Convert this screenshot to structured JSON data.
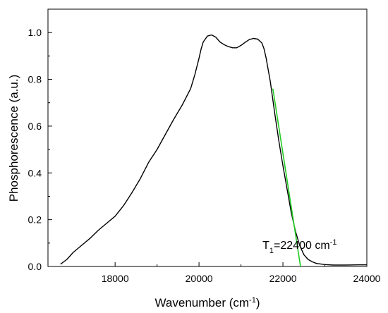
{
  "chart_data": {
    "type": "line",
    "title": "",
    "xlabel": "Wavenumber (cm",
    "xlabel_sup": "-1",
    "xlabel_end": ")",
    "ylabel": "Phosphorescence (a.u.)",
    "xlim": [
      16400,
      24000
    ],
    "ylim": [
      0.0,
      1.1
    ],
    "xticks": [
      18000,
      20000,
      22000,
      24000
    ],
    "xtick_labels": [
      "18000",
      "20000",
      "22000",
      "24000"
    ],
    "yticks": [
      0.0,
      0.2,
      0.4,
      0.6,
      0.8,
      1.0
    ],
    "ytick_labels": [
      "0.0",
      "0.2",
      "0.4",
      "0.6",
      "0.8",
      "1.0"
    ],
    "grid": false,
    "series": [
      {
        "color": "#000000",
        "x": [
          16700,
          16850,
          17000,
          17200,
          17400,
          17600,
          17800,
          18000,
          18200,
          18400,
          18600,
          18800,
          19000,
          19200,
          19400,
          19600,
          19800,
          19900,
          20000,
          20050,
          20100,
          20200,
          20300,
          20400,
          20500,
          20600,
          20700,
          20800,
          20900,
          21000,
          21100,
          21200,
          21300,
          21400,
          21500,
          21550,
          21600,
          21700,
          21800,
          21900,
          22000,
          22100,
          22200,
          22300,
          22400,
          22500,
          22600,
          22700,
          22800,
          23000,
          23200,
          23500,
          23800,
          24000
        ],
        "y": [
          0.01,
          0.03,
          0.06,
          0.09,
          0.12,
          0.155,
          0.185,
          0.215,
          0.26,
          0.315,
          0.375,
          0.445,
          0.5,
          0.565,
          0.63,
          0.69,
          0.76,
          0.82,
          0.89,
          0.93,
          0.96,
          0.985,
          0.99,
          0.98,
          0.96,
          0.948,
          0.94,
          0.935,
          0.935,
          0.945,
          0.958,
          0.97,
          0.975,
          0.972,
          0.955,
          0.93,
          0.89,
          0.79,
          0.66,
          0.54,
          0.43,
          0.33,
          0.23,
          0.15,
          0.09,
          0.05,
          0.03,
          0.02,
          0.013,
          0.008,
          0.006,
          0.006,
          0.007,
          0.007
        ]
      },
      {
        "color": "#22cc22",
        "x": [
          21760,
          22420
        ],
        "y": [
          0.76,
          0.0
        ]
      }
    ],
    "annotations": [
      {
        "text": "T",
        "sub": "1",
        "rest": "=22400 cm",
        "sup": "-1",
        "x": 22400,
        "y": 0.075
      }
    ]
  }
}
